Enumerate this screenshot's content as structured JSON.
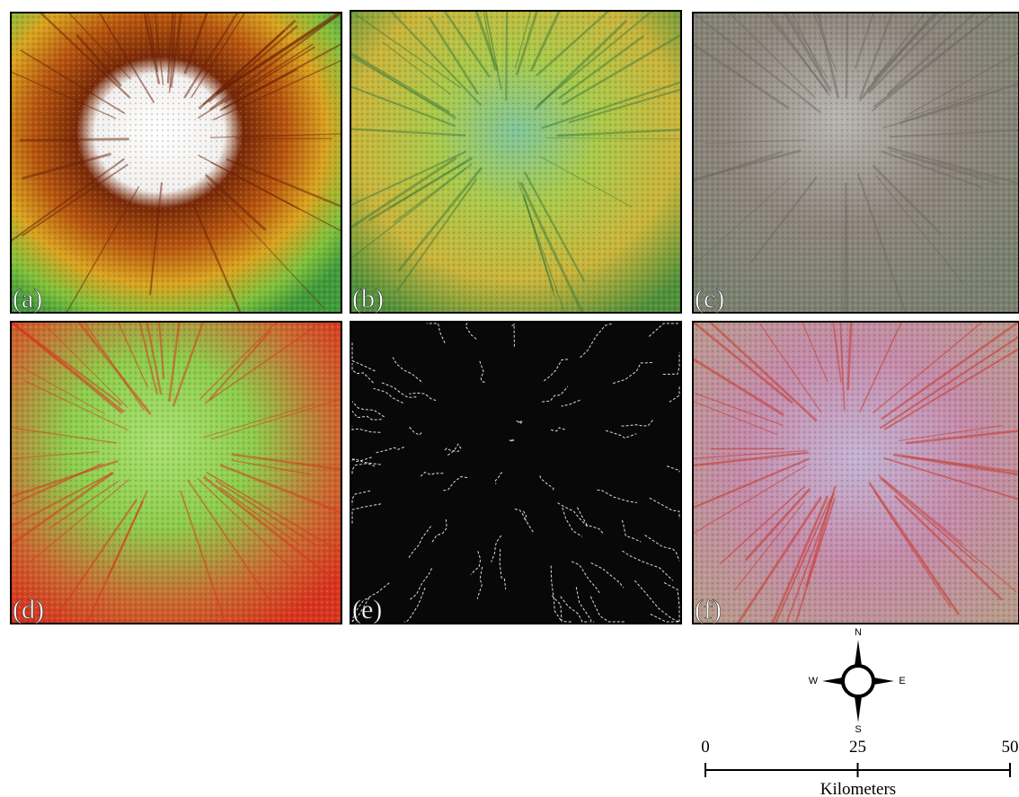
{
  "panels": [
    {
      "label": "(a)"
    },
    {
      "label": "(b)"
    },
    {
      "label": "(c)"
    },
    {
      "label": "(d)"
    },
    {
      "label": "(e)"
    },
    {
      "label": "(f)"
    }
  ],
  "compass": {
    "north": "N",
    "south": "S",
    "west": "W",
    "east": "E"
  },
  "scale_bar": {
    "ticks": [
      0,
      25,
      50
    ],
    "unit": "Kilometers"
  }
}
